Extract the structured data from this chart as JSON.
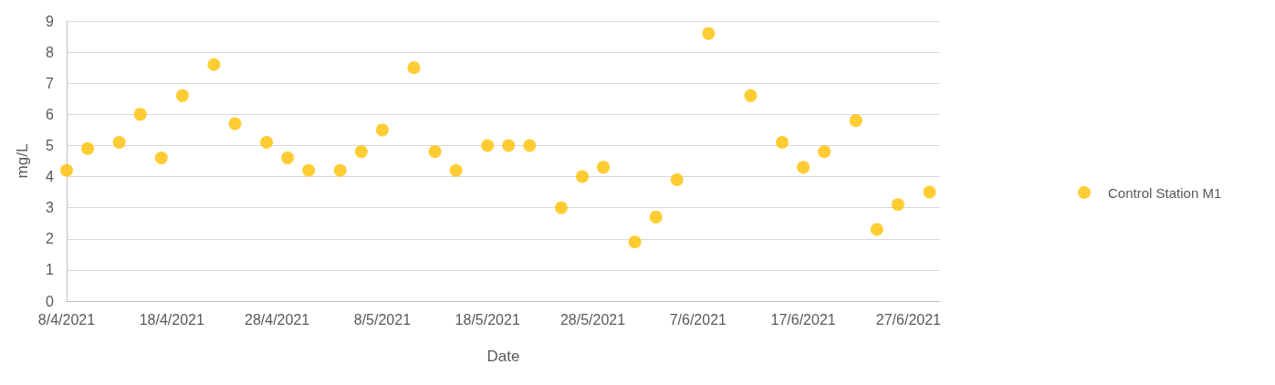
{
  "chart_data": {
    "type": "scatter",
    "xlabel": "Date",
    "ylabel": "mg/L",
    "x": [
      "2021-04-08",
      "2021-04-10",
      "2021-04-13",
      "2021-04-15",
      "2021-04-17",
      "2021-04-19",
      "2021-04-22",
      "2021-04-24",
      "2021-04-27",
      "2021-04-29",
      "2021-05-01",
      "2021-05-04",
      "2021-05-06",
      "2021-05-08",
      "2021-05-11",
      "2021-05-13",
      "2021-05-15",
      "2021-05-18",
      "2021-05-20",
      "2021-05-22",
      "2021-05-25",
      "2021-05-27",
      "2021-05-29",
      "2021-06-01",
      "2021-06-03",
      "2021-06-05",
      "2021-06-08",
      "2021-06-12",
      "2021-06-15",
      "2021-06-17",
      "2021-06-19",
      "2021-06-22",
      "2021-06-24",
      "2021-06-26",
      "2021-06-29"
    ],
    "series": [
      {
        "name": "Control Station M1",
        "color": "#ffc000",
        "values": [
          4.2,
          4.9,
          5.1,
          6.0,
          4.6,
          6.6,
          7.6,
          5.7,
          5.1,
          4.6,
          4.2,
          4.2,
          4.8,
          5.5,
          7.5,
          4.8,
          4.2,
          5.0,
          5.0,
          5.0,
          3.0,
          4.0,
          4.3,
          1.9,
          2.7,
          3.9,
          8.6,
          6.6,
          5.1,
          4.3,
          4.8,
          5.8,
          2.3,
          3.1,
          3.5
        ]
      }
    ],
    "xlim": [
      "2021-04-08",
      "2021-06-30"
    ],
    "xticks": [
      {
        "value": "2021-04-08",
        "label": "8/4/2021"
      },
      {
        "value": "2021-04-18",
        "label": "18/4/2021"
      },
      {
        "value": "2021-04-28",
        "label": "28/4/2021"
      },
      {
        "value": "2021-05-08",
        "label": "8/5/2021"
      },
      {
        "value": "2021-05-18",
        "label": "18/5/2021"
      },
      {
        "value": "2021-05-28",
        "label": "28/5/2021"
      },
      {
        "value": "2021-06-07",
        "label": "7/6/2021"
      },
      {
        "value": "2021-06-17",
        "label": "17/6/2021"
      },
      {
        "value": "2021-06-27",
        "label": "27/6/2021"
      }
    ],
    "ylim": [
      0,
      9
    ],
    "yticks": [
      0,
      1,
      2,
      3,
      4,
      5,
      6,
      7,
      8,
      9
    ],
    "grid": "y",
    "legend": "right",
    "marker": "circle"
  }
}
